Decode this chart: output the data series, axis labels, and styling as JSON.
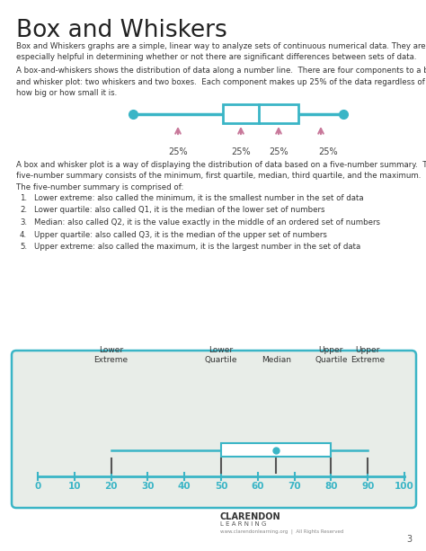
{
  "title": "Box and Whiskers",
  "bg_color": "#ffffff",
  "page_number": "3",
  "body_text_1": "Box and Whiskers graphs are a simple, linear way to analyze sets of continuous numerical data. They are\nespecially helpful in determining whether or not there are significant differences between sets of data.",
  "body_text_2": "A box-and-whiskers shows the distribution of data along a number line.  There are four components to a box\nand whisker plot: two whiskers and two boxes.  Each component makes up 25% of the data regardless of\nhow big or how small it is.",
  "body_text_3": "A box and whisker plot is a way of displaying the distribution of data based on a five-number summary.  The\nfive-number summary consists of the minimum, first quartile, median, third quartile, and the maximum.",
  "body_text_4": "The five-number summary is comprised of:",
  "list_items": [
    "Lower extreme: also called the minimum, it is the smallest number in the set of data",
    "Lower quartile: also called Q1, it is the median of the lower set of numbers",
    "Median: also called Q2, it is the value exactly in the middle of an ordered set of numbers",
    "Upper quartile: also called Q3, it is the median of the upper set of numbers",
    "Upper extreme: also called the maximum, it is the largest number in the set of data"
  ],
  "top_box_color": "#3ab5c6",
  "top_arrow_color": "#c8789a",
  "pct_labels": [
    "25%",
    "25%",
    "25%",
    "25%"
  ],
  "bottom_box_bg": "#e8ede8",
  "bottom_box_border": "#3ab5c6",
  "bottom_axis_color": "#3ab5c6",
  "bottom_tick_color": "#3ab5c6",
  "bottom_label_color": "#3ab5c6",
  "bottom_line_color": "#3ab5c6",
  "bottom_dot_color": "#3ab5c6",
  "bottom_label_text_color": "#333333",
  "axis_values": [
    0,
    10,
    20,
    30,
    40,
    50,
    60,
    70,
    80,
    90,
    100
  ],
  "lower_extreme": 20,
  "lower_quartile": 50,
  "median": 65,
  "upper_quartile": 80,
  "upper_extreme": 90
}
